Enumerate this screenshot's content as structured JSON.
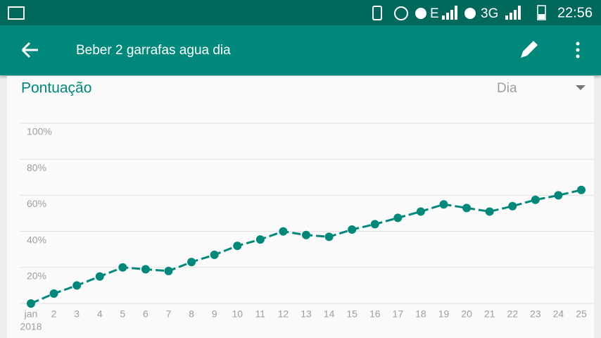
{
  "status_bar": {
    "network_1": "E",
    "network_2": "3G",
    "time": "22:56"
  },
  "app_bar": {
    "title": "Beber 2 garrafas agua dia"
  },
  "card": {
    "title": "Pontuação",
    "dropdown": "Dia"
  },
  "chart_data": {
    "type": "line",
    "categories": [
      "jan",
      "2",
      "3",
      "4",
      "5",
      "6",
      "7",
      "8",
      "9",
      "10",
      "11",
      "12",
      "13",
      "14",
      "15",
      "16",
      "17",
      "18",
      "19",
      "20",
      "21",
      "22",
      "23",
      "24",
      "25"
    ],
    "year_label": "2018",
    "series": [
      {
        "color": "#00897b",
        "values": [
          0,
          5.5,
          10,
          15,
          20,
          19,
          18,
          23,
          27,
          32,
          35.5,
          40,
          38,
          37,
          41,
          44,
          47.5,
          51,
          55,
          53,
          51,
          54,
          57.5,
          60,
          63
        ]
      }
    ],
    "ylim": [
      0,
      100
    ],
    "yticks": [
      {
        "value": 20,
        "label": "20%"
      },
      {
        "value": 40,
        "label": "40%"
      },
      {
        "value": 60,
        "label": "60%"
      },
      {
        "value": 80,
        "label": "80%"
      },
      {
        "value": 100,
        "label": "100%"
      }
    ],
    "grid": true
  }
}
